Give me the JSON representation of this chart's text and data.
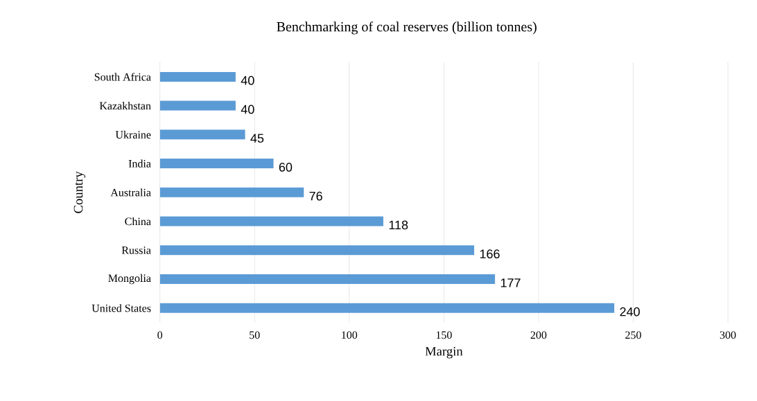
{
  "chart_data": {
    "type": "bar",
    "orientation": "horizontal",
    "title": "Benchmarking of coal reserves (billion tonnes)",
    "xlabel": "Margin",
    "ylabel": "Country",
    "categories": [
      "South Africa",
      "Kazakhstan",
      "Ukraine",
      "India",
      "Australia",
      "China",
      "Russia",
      "Mongolia",
      "United States"
    ],
    "values": [
      40,
      40,
      45,
      60,
      76,
      118,
      166,
      177,
      240
    ],
    "color": "#5b9bd5",
    "xlim": [
      0,
      300
    ],
    "xticks": [
      0,
      50,
      100,
      150,
      200,
      250,
      300
    ],
    "grid": "x",
    "data_labels": true
  }
}
